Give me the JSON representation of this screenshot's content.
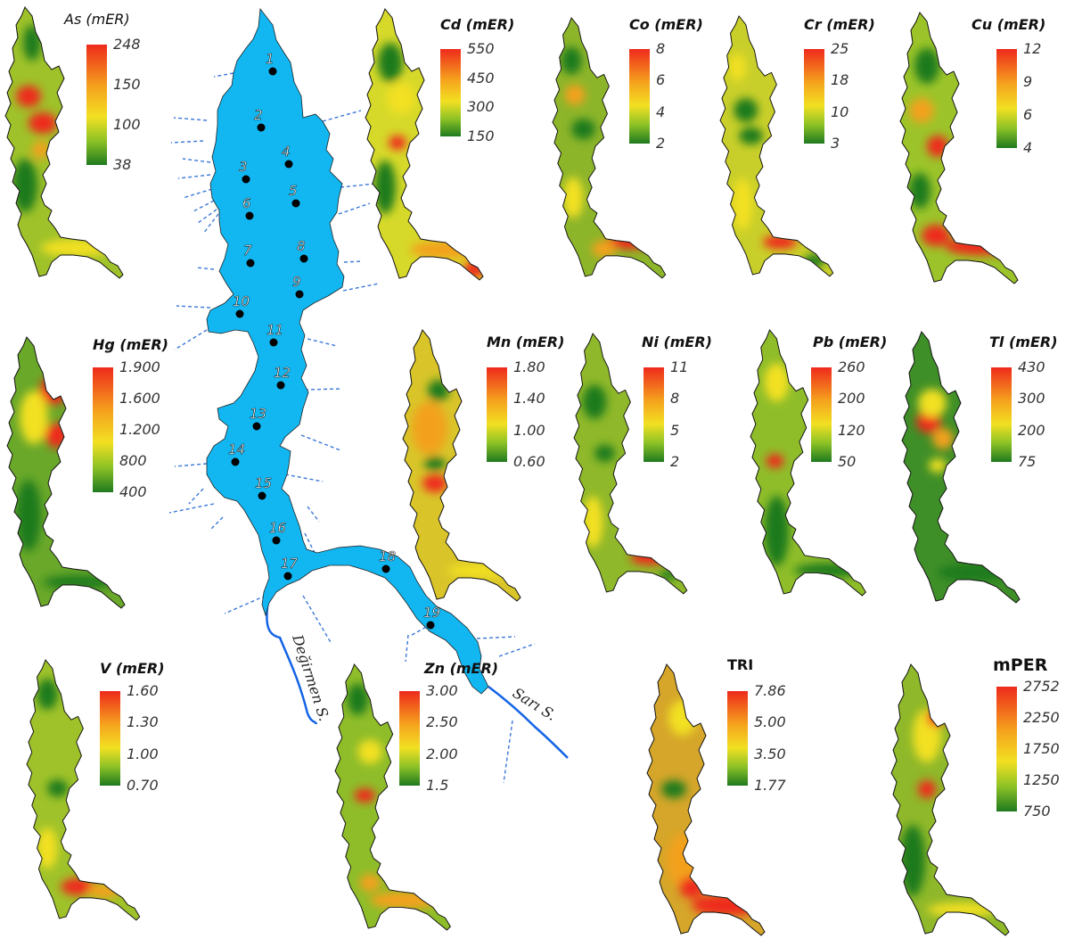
{
  "colors": {
    "reservoir": "#12b7f2",
    "river": "#1464e6",
    "tributary": "#3b78d8",
    "ramp_low": "#1f7a1f",
    "ramp_mid": "#f2e022",
    "ramp_high": "#ee2a1c"
  },
  "main_map": {
    "stations": [
      "1",
      "2",
      "3",
      "4",
      "5",
      "6",
      "7",
      "8",
      "9",
      "10",
      "11",
      "12",
      "13",
      "14",
      "15",
      "16",
      "17",
      "18",
      "19"
    ],
    "rivers": [
      "Değirmen S.",
      "Sarı S."
    ]
  },
  "panels": [
    {
      "id": "as",
      "title": "As (mER)",
      "ticks": [
        "248",
        "150",
        "100",
        "38"
      ],
      "light": true
    },
    {
      "id": "cd",
      "title": "Cd (mER)",
      "ticks": [
        "550",
        "450",
        "300",
        "150"
      ]
    },
    {
      "id": "co",
      "title": "Co (mER)",
      "ticks": [
        "8",
        "6",
        "4",
        "2"
      ]
    },
    {
      "id": "cr",
      "title": "Cr (mER)",
      "ticks": [
        "25",
        "18",
        "10",
        "3"
      ]
    },
    {
      "id": "cu",
      "title": "Cu (mER)",
      "ticks": [
        "12",
        "9",
        "6",
        "4"
      ]
    },
    {
      "id": "hg",
      "title": "Hg (mER)",
      "ticks": [
        "1.900",
        "1.600",
        "1.200",
        "800",
        "400"
      ]
    },
    {
      "id": "mn",
      "title": "Mn (mER)",
      "ticks": [
        "1.80",
        "1.40",
        "1.00",
        "0.60"
      ]
    },
    {
      "id": "ni",
      "title": "Ni (mER)",
      "ticks": [
        "11",
        "8",
        "5",
        "2"
      ]
    },
    {
      "id": "pb",
      "title": "Pb (mER)",
      "ticks": [
        "260",
        "200",
        "120",
        "50"
      ]
    },
    {
      "id": "tl",
      "title": "Tl (mER)",
      "ticks": [
        "430",
        "300",
        "200",
        "75"
      ]
    },
    {
      "id": "v",
      "title": "V (mER)",
      "ticks": [
        "1.60",
        "1.30",
        "1.00",
        "0.70"
      ]
    },
    {
      "id": "zn",
      "title": "Zn (mER)",
      "ticks": [
        "3.00",
        "2.50",
        "2.00",
        "1.5"
      ]
    },
    {
      "id": "tri",
      "title": "TRI",
      "ticks": [
        "7.86",
        "5.00",
        "3.50",
        "1.77"
      ],
      "plain": true
    },
    {
      "id": "mper",
      "title": "mPER",
      "ticks": [
        "2752",
        "2250",
        "1750",
        "1250",
        "750"
      ],
      "plain": true,
      "big": true
    }
  ]
}
